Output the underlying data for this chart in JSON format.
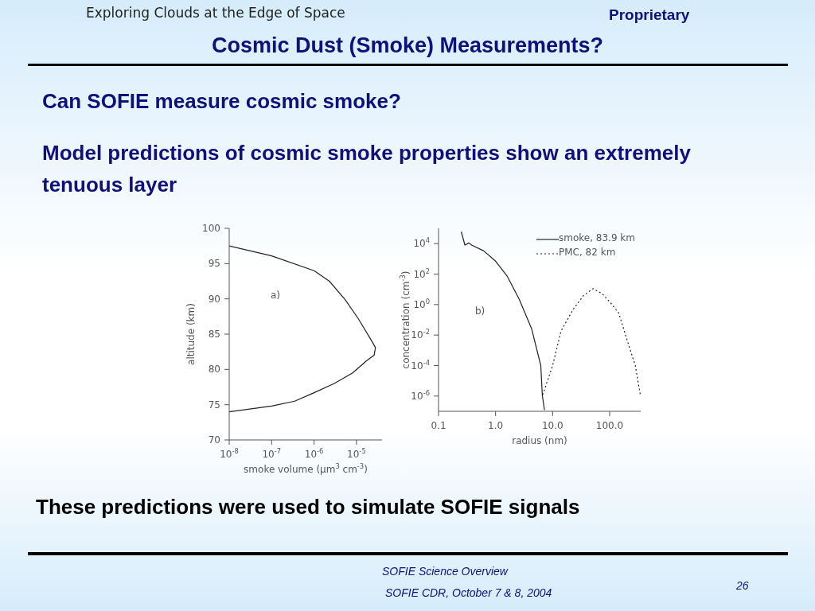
{
  "chart_data": [
    {
      "type": "line",
      "title": "Cosmic Dust (Smoke) Measurements?",
      "xlabel": "smoke volume (μm$^{3}$ cm$^{-3}$)",
      "ylabel": "altitude (km)",
      "log": "x",
      "xlim": [
        1e-08,
        4e-05
      ],
      "xticks": [
        {
          "value": 1e-08,
          "label": "10$^{-8}$"
        },
        {
          "value": 1e-07,
          "label": "10$^{-7}$"
        },
        {
          "value": 1e-06,
          "label": "10$^{-6}$"
        },
        {
          "value": 1e-05,
          "label": "10$^{-5}$"
        }
      ],
      "ylim": [
        70,
        100
      ],
      "yticks": [
        70,
        75,
        80,
        85,
        90,
        95,
        100
      ],
      "series": [
        {
          "color": "#222222",
          "x": [
            1e-08,
            1e-07,
            1e-06,
            2.3e-06,
            5.4e-06,
            1.1e-05,
            2.2e-05,
            2.8e-05,
            2.6e-05,
            1.7e-05,
            8.1e-06,
            3e-06,
            1e-06,
            3.5e-07,
            1e-07,
            1e-08
          ],
          "values": [
            97.5,
            96.1,
            94,
            92.5,
            89.9,
            87.2,
            84.2,
            83.1,
            82,
            81.2,
            79.5,
            78,
            76.7,
            75.5,
            74.8,
            74
          ]
        }
      ],
      "annotations": [
        "a)",
        "Exploring Clouds at the Edge of Space",
        "Proprietary",
        "Can SOFIE measure cosmic smoke?",
        "Model predictions of cosmic smoke properties show an extremely tenuous layer",
        "These predictions were used to simulate SOFIE signals",
        "SOFIE Science Overview",
        "SOFIE CDR, October 7 & 8, 2004",
        "26"
      ]
    },
    {
      "type": "line",
      "xlabel": "radius (nm)",
      "ylabel": "concentration (cm$^{-3}$)",
      "log": "xy",
      "legend": "top right",
      "xlim": [
        0.1,
        350
      ],
      "xticks": [
        {
          "value": 0.1,
          "label": "0.1"
        },
        {
          "value": 1,
          "label": "1.0"
        },
        {
          "value": 10,
          "label": "10.0"
        },
        {
          "value": 100,
          "label": "100.0"
        }
      ],
      "ylim": [
        1e-07,
        100000.0
      ],
      "yticks": [
        {
          "value": 1e-06,
          "label": "10$^{-6}$"
        },
        {
          "value": 0.0001,
          "label": "10$^{-4}$"
        },
        {
          "value": 0.01,
          "label": "10$^{-2}$"
        },
        {
          "value": 1,
          "label": "10$^{0}$"
        },
        {
          "value": 100,
          "label": "10$^{2}$"
        },
        {
          "value": 10000,
          "label": "10$^{4}$"
        }
      ],
      "series": [
        {
          "name": "smoke, 83.9 km",
          "color": "#222222",
          "line_style": "solid",
          "x": [
            0.25,
            0.29,
            0.34,
            0.38,
            0.62,
            1.0,
            1.6,
            2.6,
            4.3,
            6.2,
            6.6,
            7.2
          ],
          "values": [
            60000,
            8000,
            11000,
            8000,
            3300,
            700,
            72,
            2.2,
            0.025,
            0.0001,
            1.1e-06,
            1.2e-07
          ]
        },
        {
          "name": "PMC, 82 km",
          "color": "#222222",
          "line_style": "dotted",
          "x": [
            6.7,
            10,
            14,
            23,
            35,
            51,
            75,
            110,
            144,
            210,
            282,
            345
          ],
          "values": [
            1.2e-06,
            0.0001,
            0.018,
            0.5,
            4,
            11,
            5,
            1,
            0.28,
            0.003,
            0.0001,
            1.2e-06
          ]
        }
      ],
      "annotations": [
        "b)"
      ]
    }
  ]
}
